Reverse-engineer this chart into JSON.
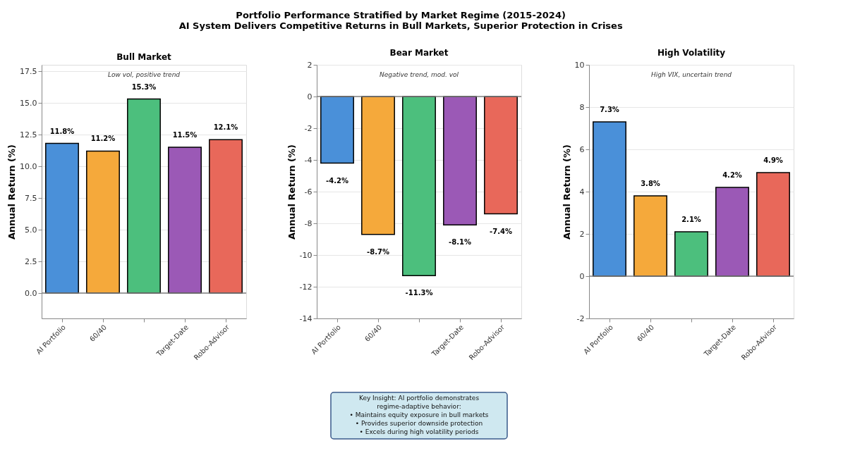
{
  "chart_data": [
    {
      "type": "bar",
      "title": "Bull Market",
      "ylabel": "Annual Return (%)",
      "categories": [
        "AI Portfolio",
        "60/40",
        null,
        "Target-Date",
        "Robo-Advisor"
      ],
      "values": [
        11.8,
        11.2,
        15.3,
        11.5,
        12.1
      ],
      "colors": [
        "#4a90d9",
        "#f5a93b",
        "#4cbf7d",
        "#9b59b6",
        "#e8685a"
      ],
      "value_labels": [
        "11.8%",
        "11.2%",
        "15.3%",
        "11.5%",
        "12.1%"
      ],
      "ylim": [
        -2,
        18
      ],
      "yticks": [
        {
          "value": 0,
          "label": "0.0"
        },
        2.5,
        {
          "value": 5,
          "label": "5.0"
        },
        7.5,
        {
          "value": 10,
          "label": "10.0"
        },
        12.5,
        {
          "value": 15,
          "label": "15.0"
        },
        17.5
      ],
      "grid": "y",
      "ref_lines": [
        {
          "axis": "y",
          "value": 0,
          "color": "#808080"
        }
      ],
      "annotations": [
        "Low vol, positive trend",
        "Portfolio Performance Stratified by Market Regime (2015-2024)\nAI System Delivers Competitive Returns in Bull Markets, Superior Protection in Crises"
      ]
    },
    {
      "type": "bar",
      "title": "Bear Market",
      "ylabel": "Annual Return (%)",
      "categories": [
        "AI Portfolio",
        "60/40",
        null,
        "Target-Date",
        "Robo-Advisor"
      ],
      "values": [
        -4.2,
        -8.7,
        -11.3,
        -8.1,
        -7.4
      ],
      "colors": [
        "#4a90d9",
        "#f5a93b",
        "#4cbf7d",
        "#9b59b6",
        "#e8685a"
      ],
      "value_labels": [
        "-4.2%",
        "-8.7%",
        "-11.3%",
        "-8.1%",
        "-7.4%"
      ],
      "ylim": [
        -14,
        2
      ],
      "yticks": [
        -14,
        -12,
        -10,
        -8,
        -6,
        -4,
        -2,
        0,
        2
      ],
      "grid": "y",
      "ref_lines": [
        {
          "axis": "y",
          "value": 0,
          "color": "#808080"
        }
      ],
      "annotations": [
        "Negative trend, mod. vol",
        "Key Insight: AI portfolio demonstrates\nregime-adaptive behavior:\n• Maintains equity exposure in bull markets\n• Provides superior downside protection\n• Excels during high volatility periods"
      ]
    },
    {
      "type": "bar",
      "title": "High Volatility",
      "ylabel": "Annual Return (%)",
      "categories": [
        "AI Portfolio",
        "60/40",
        null,
        "Target-Date",
        "Robo-Advisor"
      ],
      "values": [
        7.3,
        3.8,
        2.1,
        4.2,
        4.9
      ],
      "colors": [
        "#4a90d9",
        "#f5a93b",
        "#4cbf7d",
        "#9b59b6",
        "#e8685a"
      ],
      "value_labels": [
        "7.3%",
        "3.8%",
        "2.1%",
        "4.2%",
        "4.9%"
      ],
      "ylim": [
        -2,
        10
      ],
      "yticks": [
        -2,
        0,
        2,
        4,
        6,
        8,
        10
      ],
      "grid": "y",
      "ref_lines": [
        {
          "axis": "y",
          "value": 0,
          "color": "#808080"
        }
      ],
      "annotations": [
        "High VIX, uncertain trend"
      ]
    }
  ]
}
